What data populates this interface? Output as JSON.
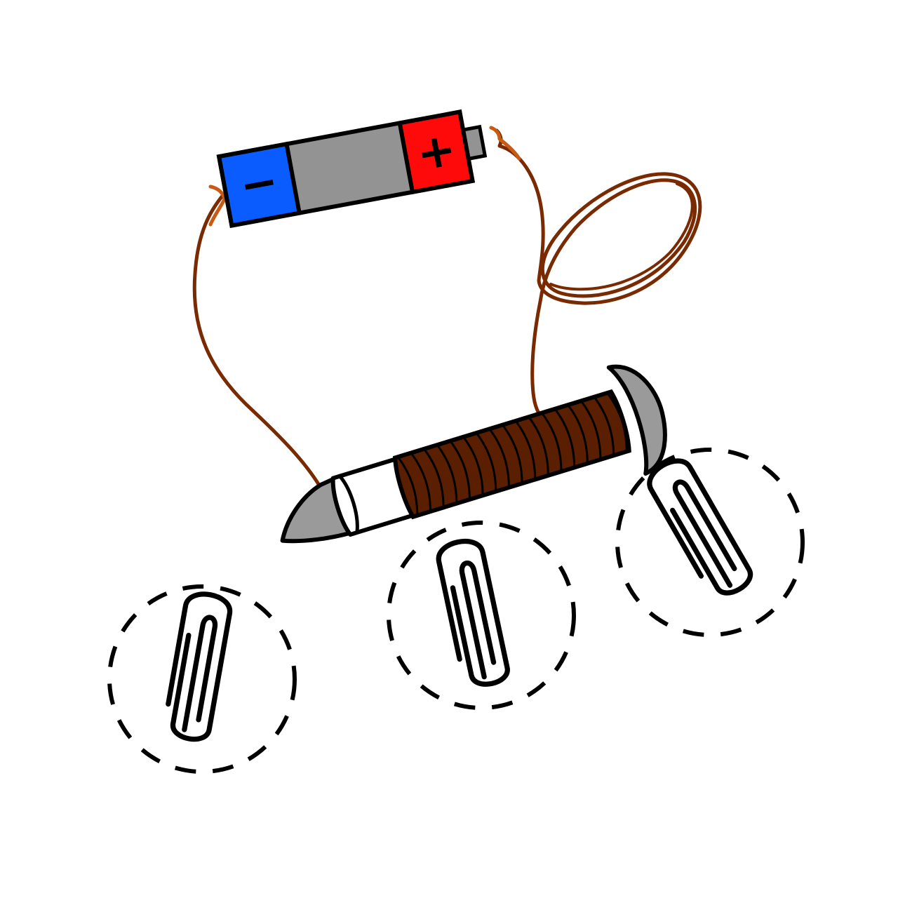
{
  "battery": {
    "negative_label": "−",
    "positive_label": "+"
  },
  "colors": {
    "negative": "#0a5cff",
    "positive": "#ff0a0a",
    "battery_body": "#939393",
    "wire": "#7a2a00",
    "wire_tip": "#c85a14",
    "nail": "#9a9a9a",
    "outline": "#000000"
  },
  "icons": [
    "battery-icon",
    "wire-icon",
    "nail-icon",
    "paperclip-icon"
  ],
  "paperclip_count": 3
}
